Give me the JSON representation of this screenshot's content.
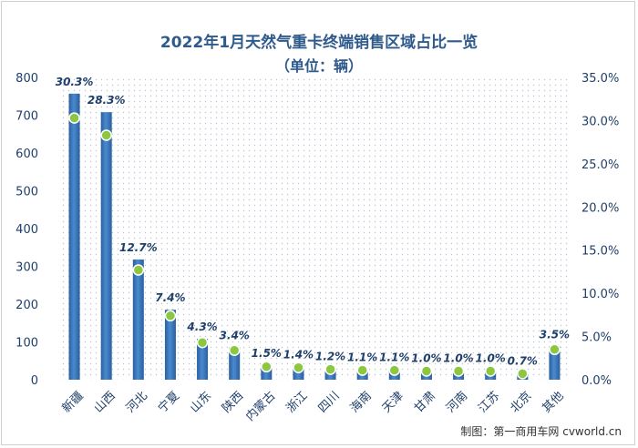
{
  "chart_data": {
    "type": "bar",
    "title": "2022年1月天然气重卡终端销售区域占比一览",
    "subtitle": "（单位：辆）",
    "categories": [
      "新疆",
      "山西",
      "河北",
      "宁夏",
      "山东",
      "陕西",
      "内蒙古",
      "浙江",
      "四川",
      "海南",
      "天津",
      "甘肃",
      "河南",
      "江苏",
      "北京",
      "其他"
    ],
    "series": [
      {
        "type": "bar",
        "axis": "left",
        "values": [
          757,
          708,
          318,
          185,
          108,
          85,
          38,
          35,
          30,
          28,
          28,
          25,
          25,
          25,
          18,
          88
        ]
      },
      {
        "type": "line-markers",
        "axis": "right",
        "values": [
          30.3,
          28.3,
          12.7,
          7.4,
          4.3,
          3.4,
          1.5,
          1.4,
          1.2,
          1.1,
          1.1,
          1.0,
          1.0,
          1.0,
          0.7,
          3.5
        ],
        "labels": [
          "30.3%",
          "28.3%",
          "12.7%",
          "7.4%",
          "4.3%",
          "3.4%",
          "1.5%",
          "1.4%",
          "1.2%",
          "1.1%",
          "1.1%",
          "1.0%",
          "1.0%",
          "1.0%",
          "0.7%",
          "3.5%"
        ]
      }
    ],
    "ylim": [
      0,
      800
    ],
    "y_ticks": [
      "0",
      "100",
      "200",
      "300",
      "400",
      "500",
      "600",
      "700",
      "800"
    ],
    "y2lim": [
      0,
      35
    ],
    "y2_ticks": [
      "0.0%",
      "5.0%",
      "10.0%",
      "15.0%",
      "20.0%",
      "25.0%",
      "30.0%",
      "35.0%"
    ],
    "grid": false,
    "plot_background": "dotted",
    "colors": {
      "bar": "#2e6db4",
      "bar_light": "#5b95d6",
      "marker_fill": "#8dc63f",
      "title": "#2f5a8c",
      "text": "#1f3f6b"
    }
  },
  "footer": {
    "source": "制图：第一商用车网 cvworld.cn"
  }
}
